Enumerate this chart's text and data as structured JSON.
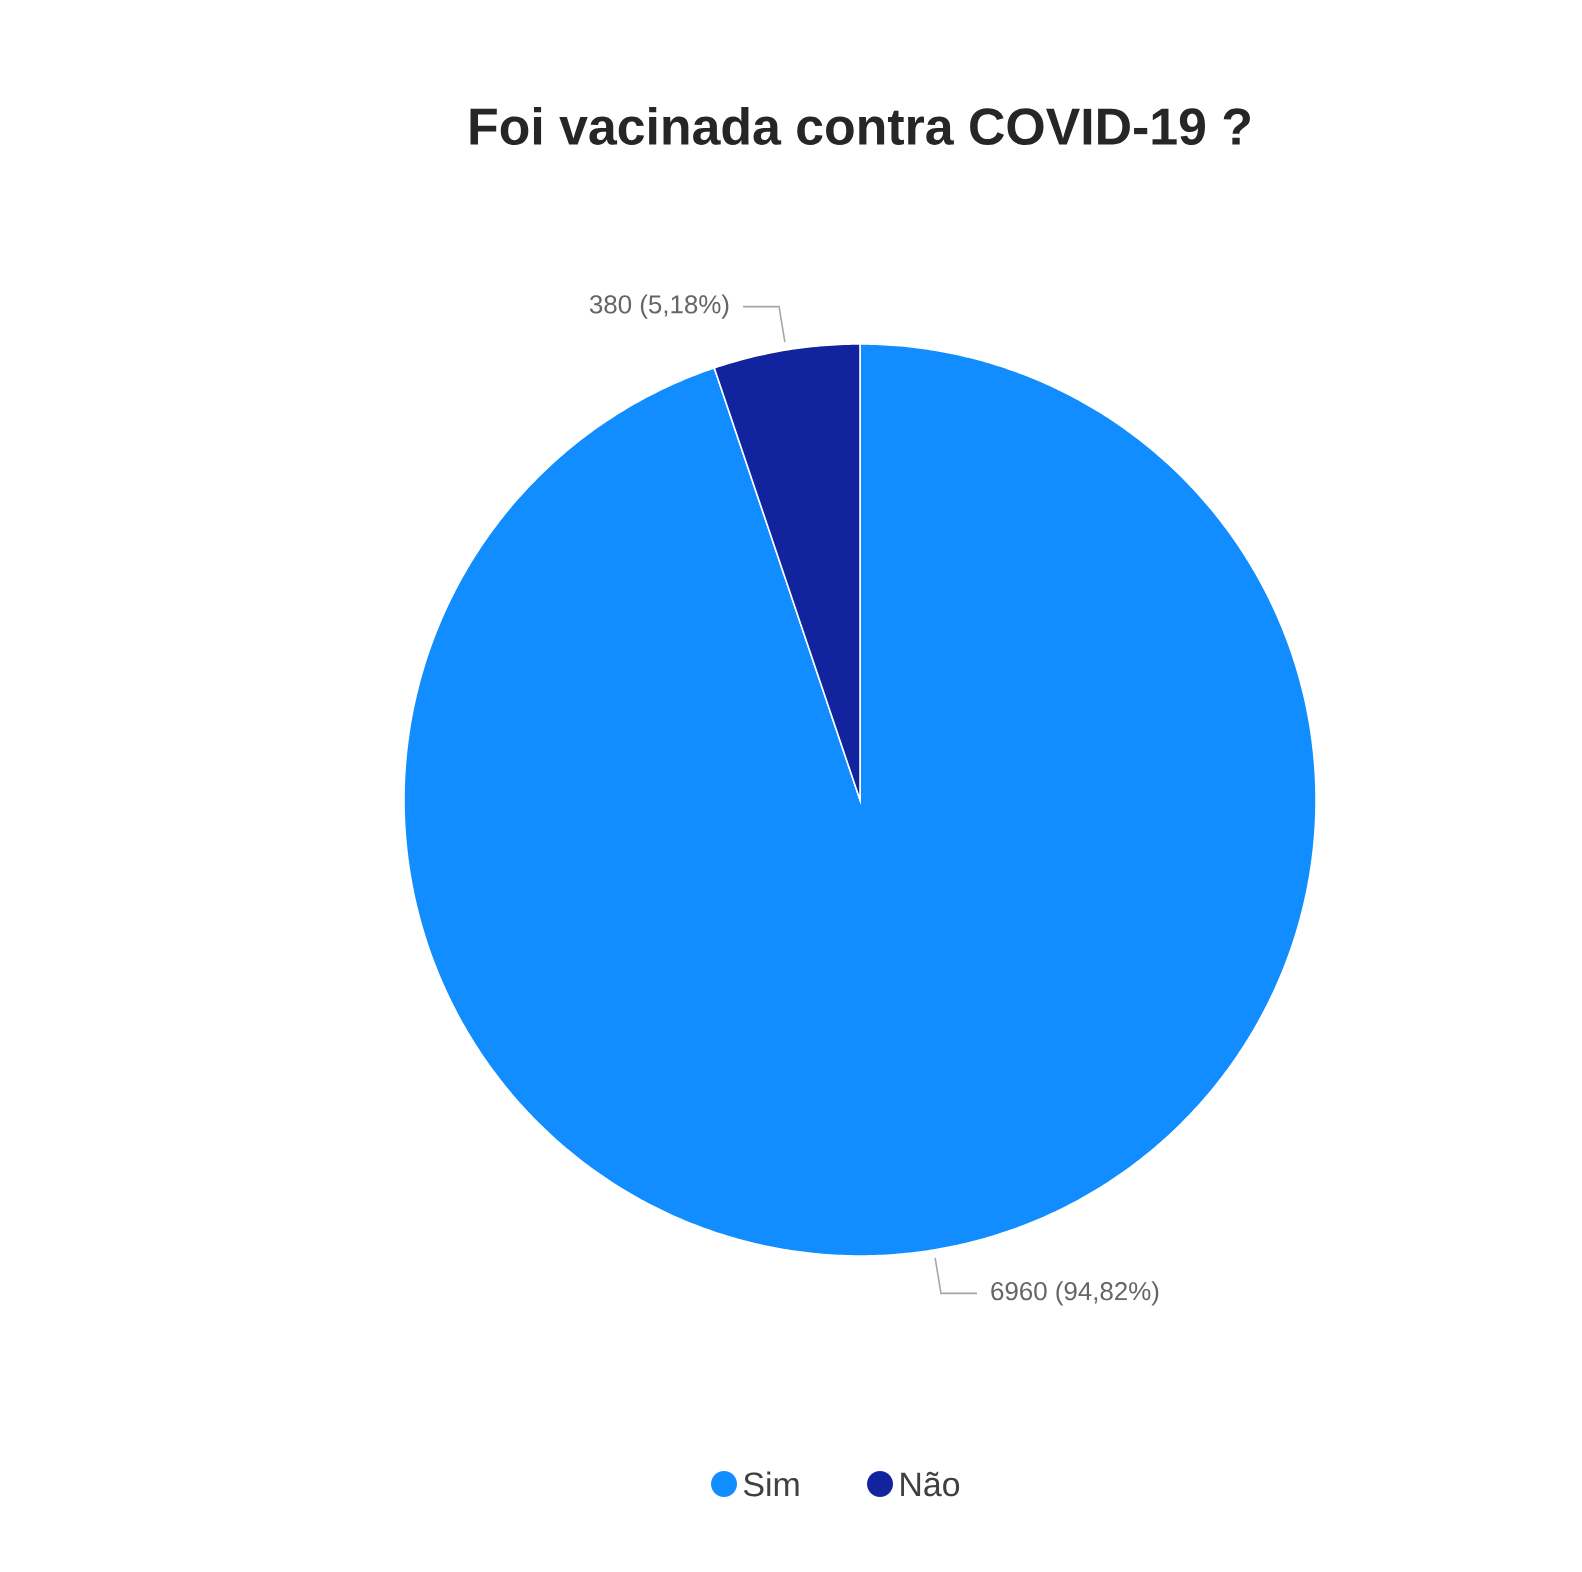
{
  "chart_data": {
    "type": "pie",
    "title": "Foi vacinada contra COVID-19 ?",
    "categories": [
      "Sim",
      "Não"
    ],
    "values": [
      6960,
      380
    ],
    "colors": [
      "#118dff",
      "#12239e"
    ],
    "value_labels": [
      "6960 (94,82%)",
      "380 (5,18%)"
    ],
    "legend": "bottom"
  }
}
